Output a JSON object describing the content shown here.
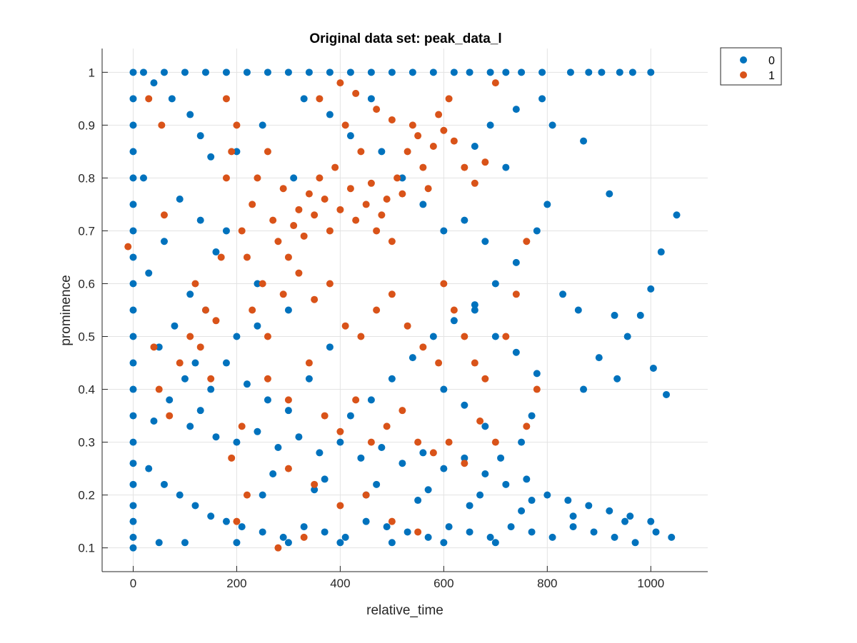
{
  "chart_data": {
    "type": "scatter",
    "title": "Original data set: peak_data_l",
    "xlabel": "relative_time",
    "ylabel": "prominence",
    "xlim": [
      -60,
      1110
    ],
    "ylim": [
      0.055,
      1.045
    ],
    "xticks": [
      0,
      200,
      400,
      600,
      800,
      1000
    ],
    "yticks": [
      0.1,
      0.2,
      0.3,
      0.4,
      0.5,
      0.6,
      0.7,
      0.8,
      0.9,
      1
    ],
    "grid": true,
    "legend_position": "top-right, outside",
    "series": [
      {
        "name": "0",
        "color": "#0072BD",
        "points": [
          [
            0,
            0.1
          ],
          [
            0,
            0.12
          ],
          [
            0,
            0.15
          ],
          [
            0,
            0.18
          ],
          [
            0,
            0.22
          ],
          [
            0,
            0.26
          ],
          [
            0,
            0.3
          ],
          [
            0,
            0.35
          ],
          [
            0,
            0.4
          ],
          [
            0,
            0.45
          ],
          [
            0,
            0.5
          ],
          [
            0,
            0.55
          ],
          [
            0,
            0.6
          ],
          [
            0,
            0.65
          ],
          [
            0,
            0.7
          ],
          [
            0,
            0.75
          ],
          [
            0,
            0.8
          ],
          [
            0,
            0.85
          ],
          [
            0,
            0.9
          ],
          [
            0,
            0.95
          ],
          [
            0,
            1.0
          ],
          [
            20,
            1.0
          ],
          [
            60,
            1.0
          ],
          [
            100,
            1.0
          ],
          [
            140,
            1.0
          ],
          [
            180,
            1.0
          ],
          [
            220,
            1.0
          ],
          [
            260,
            1.0
          ],
          [
            300,
            1.0
          ],
          [
            340,
            1.0
          ],
          [
            380,
            1.0
          ],
          [
            420,
            1.0
          ],
          [
            460,
            1.0
          ],
          [
            500,
            1.0
          ],
          [
            540,
            1.0
          ],
          [
            580,
            1.0
          ],
          [
            620,
            1.0
          ],
          [
            650,
            1.0
          ],
          [
            690,
            1.0
          ],
          [
            720,
            1.0
          ],
          [
            750,
            1.0
          ],
          [
            790,
            1.0
          ],
          [
            845,
            1.0
          ],
          [
            880,
            1.0
          ],
          [
            905,
            1.0
          ],
          [
            940,
            1.0
          ],
          [
            965,
            1.0
          ],
          [
            1000,
            1.0
          ],
          [
            40,
            0.98
          ],
          [
            75,
            0.95
          ],
          [
            110,
            0.92
          ],
          [
            130,
            0.88
          ],
          [
            150,
            0.84
          ],
          [
            20,
            0.8
          ],
          [
            90,
            0.76
          ],
          [
            130,
            0.72
          ],
          [
            60,
            0.68
          ],
          [
            160,
            0.66
          ],
          [
            30,
            0.62
          ],
          [
            110,
            0.58
          ],
          [
            140,
            0.55
          ],
          [
            80,
            0.52
          ],
          [
            50,
            0.48
          ],
          [
            120,
            0.45
          ],
          [
            100,
            0.42
          ],
          [
            150,
            0.4
          ],
          [
            70,
            0.38
          ],
          [
            130,
            0.36
          ],
          [
            40,
            0.34
          ],
          [
            110,
            0.33
          ],
          [
            160,
            0.31
          ],
          [
            200,
            0.3
          ],
          [
            240,
            0.32
          ],
          [
            280,
            0.29
          ],
          [
            320,
            0.31
          ],
          [
            360,
            0.28
          ],
          [
            400,
            0.3
          ],
          [
            440,
            0.27
          ],
          [
            480,
            0.29
          ],
          [
            520,
            0.26
          ],
          [
            560,
            0.28
          ],
          [
            600,
            0.25
          ],
          [
            640,
            0.27
          ],
          [
            680,
            0.24
          ],
          [
            720,
            0.22
          ],
          [
            760,
            0.23
          ],
          [
            800,
            0.2
          ],
          [
            840,
            0.19
          ],
          [
            880,
            0.18
          ],
          [
            920,
            0.17
          ],
          [
            960,
            0.16
          ],
          [
            1000,
            0.15
          ],
          [
            1040,
            0.12
          ],
          [
            30,
            0.25
          ],
          [
            60,
            0.22
          ],
          [
            90,
            0.2
          ],
          [
            120,
            0.18
          ],
          [
            150,
            0.16
          ],
          [
            180,
            0.15
          ],
          [
            210,
            0.14
          ],
          [
            250,
            0.13
          ],
          [
            290,
            0.12
          ],
          [
            330,
            0.14
          ],
          [
            370,
            0.13
          ],
          [
            410,
            0.12
          ],
          [
            450,
            0.15
          ],
          [
            490,
            0.14
          ],
          [
            530,
            0.13
          ],
          [
            570,
            0.12
          ],
          [
            610,
            0.14
          ],
          [
            650,
            0.13
          ],
          [
            690,
            0.12
          ],
          [
            730,
            0.14
          ],
          [
            770,
            0.13
          ],
          [
            810,
            0.12
          ],
          [
            850,
            0.14
          ],
          [
            890,
            0.13
          ],
          [
            930,
            0.12
          ],
          [
            970,
            0.11
          ],
          [
            1010,
            0.13
          ],
          [
            50,
            0.11
          ],
          [
            100,
            0.11
          ],
          [
            200,
            0.11
          ],
          [
            300,
            0.11
          ],
          [
            400,
            0.11
          ],
          [
            500,
            0.11
          ],
          [
            600,
            0.11
          ],
          [
            700,
            0.11
          ],
          [
            250,
            0.2
          ],
          [
            350,
            0.21
          ],
          [
            450,
            0.2
          ],
          [
            550,
            0.19
          ],
          [
            650,
            0.18
          ],
          [
            750,
            0.17
          ],
          [
            850,
            0.16
          ],
          [
            950,
            0.15
          ],
          [
            270,
            0.24
          ],
          [
            370,
            0.23
          ],
          [
            470,
            0.22
          ],
          [
            570,
            0.21
          ],
          [
            670,
            0.2
          ],
          [
            770,
            0.19
          ],
          [
            420,
            0.35
          ],
          [
            460,
            0.38
          ],
          [
            500,
            0.42
          ],
          [
            540,
            0.46
          ],
          [
            580,
            0.5
          ],
          [
            620,
            0.53
          ],
          [
            660,
            0.56
          ],
          [
            700,
            0.6
          ],
          [
            740,
            0.64
          ],
          [
            780,
            0.7
          ],
          [
            800,
            0.75
          ],
          [
            810,
            0.9
          ],
          [
            870,
            0.87
          ],
          [
            920,
            0.77
          ],
          [
            1000,
            0.59
          ],
          [
            1020,
            0.66
          ],
          [
            1050,
            0.73
          ],
          [
            930,
            0.54
          ],
          [
            980,
            0.54
          ],
          [
            860,
            0.55
          ],
          [
            830,
            0.58
          ],
          [
            955,
            0.5
          ],
          [
            900,
            0.46
          ],
          [
            1005,
            0.44
          ],
          [
            1030,
            0.39
          ],
          [
            935,
            0.42
          ],
          [
            870,
            0.4
          ],
          [
            780,
            0.43
          ],
          [
            740,
            0.47
          ],
          [
            700,
            0.5
          ],
          [
            660,
            0.55
          ],
          [
            240,
            0.52
          ],
          [
            200,
            0.5
          ],
          [
            180,
            0.45
          ],
          [
            220,
            0.41
          ],
          [
            260,
            0.38
          ],
          [
            300,
            0.36
          ],
          [
            340,
            0.42
          ],
          [
            380,
            0.48
          ],
          [
            300,
            0.55
          ],
          [
            240,
            0.6
          ],
          [
            180,
            0.7
          ],
          [
            200,
            0.85
          ],
          [
            250,
            0.9
          ],
          [
            310,
            0.8
          ],
          [
            330,
            0.95
          ],
          [
            380,
            0.92
          ],
          [
            420,
            0.88
          ],
          [
            460,
            0.95
          ],
          [
            480,
            0.85
          ],
          [
            520,
            0.8
          ],
          [
            560,
            0.75
          ],
          [
            600,
            0.7
          ],
          [
            640,
            0.72
          ],
          [
            680,
            0.68
          ],
          [
            720,
            0.82
          ],
          [
            660,
            0.86
          ],
          [
            690,
            0.9
          ],
          [
            740,
            0.93
          ],
          [
            790,
            0.95
          ],
          [
            770,
            0.35
          ],
          [
            750,
            0.3
          ],
          [
            710,
            0.27
          ],
          [
            680,
            0.33
          ],
          [
            640,
            0.37
          ],
          [
            600,
            0.4
          ]
        ]
      },
      {
        "name": "1",
        "color": "#D95319",
        "points": [
          [
            -10,
            0.67
          ],
          [
            30,
            0.95
          ],
          [
            55,
            0.9
          ],
          [
            60,
            0.73
          ],
          [
            120,
            0.6
          ],
          [
            140,
            0.55
          ],
          [
            180,
            0.95
          ],
          [
            200,
            0.9
          ],
          [
            210,
            0.7
          ],
          [
            220,
            0.65
          ],
          [
            230,
            0.75
          ],
          [
            240,
            0.8
          ],
          [
            250,
            0.6
          ],
          [
            260,
            0.85
          ],
          [
            270,
            0.72
          ],
          [
            280,
            0.68
          ],
          [
            290,
            0.78
          ],
          [
            300,
            0.65
          ],
          [
            310,
            0.71
          ],
          [
            320,
            0.74
          ],
          [
            330,
            0.69
          ],
          [
            340,
            0.77
          ],
          [
            350,
            0.73
          ],
          [
            360,
            0.8
          ],
          [
            370,
            0.76
          ],
          [
            380,
            0.7
          ],
          [
            390,
            0.82
          ],
          [
            400,
            0.74
          ],
          [
            410,
            0.9
          ],
          [
            420,
            0.78
          ],
          [
            430,
            0.72
          ],
          [
            440,
            0.85
          ],
          [
            450,
            0.75
          ],
          [
            460,
            0.79
          ],
          [
            470,
            0.7
          ],
          [
            480,
            0.73
          ],
          [
            490,
            0.76
          ],
          [
            500,
            0.68
          ],
          [
            510,
            0.8
          ],
          [
            520,
            0.77
          ],
          [
            530,
            0.85
          ],
          [
            540,
            0.9
          ],
          [
            550,
            0.88
          ],
          [
            560,
            0.82
          ],
          [
            570,
            0.78
          ],
          [
            580,
            0.86
          ],
          [
            590,
            0.92
          ],
          [
            600,
            0.89
          ],
          [
            610,
            0.95
          ],
          [
            620,
            0.87
          ],
          [
            640,
            0.82
          ],
          [
            660,
            0.79
          ],
          [
            680,
            0.83
          ],
          [
            700,
            0.98
          ],
          [
            760,
            0.68
          ],
          [
            780,
            0.4
          ],
          [
            230,
            0.55
          ],
          [
            260,
            0.5
          ],
          [
            290,
            0.58
          ],
          [
            320,
            0.62
          ],
          [
            350,
            0.57
          ],
          [
            380,
            0.6
          ],
          [
            410,
            0.52
          ],
          [
            440,
            0.5
          ],
          [
            470,
            0.55
          ],
          [
            500,
            0.58
          ],
          [
            530,
            0.52
          ],
          [
            560,
            0.48
          ],
          [
            590,
            0.45
          ],
          [
            260,
            0.42
          ],
          [
            300,
            0.38
          ],
          [
            340,
            0.45
          ],
          [
            370,
            0.35
          ],
          [
            400,
            0.32
          ],
          [
            430,
            0.38
          ],
          [
            460,
            0.3
          ],
          [
            490,
            0.33
          ],
          [
            520,
            0.36
          ],
          [
            550,
            0.3
          ],
          [
            580,
            0.28
          ],
          [
            610,
            0.3
          ],
          [
            640,
            0.26
          ],
          [
            670,
            0.34
          ],
          [
            700,
            0.3
          ],
          [
            760,
            0.33
          ],
          [
            300,
            0.25
          ],
          [
            350,
            0.22
          ],
          [
            400,
            0.18
          ],
          [
            450,
            0.2
          ],
          [
            500,
            0.15
          ],
          [
            550,
            0.13
          ],
          [
            280,
            0.1
          ],
          [
            330,
            0.12
          ],
          [
            200,
            0.15
          ],
          [
            220,
            0.2
          ],
          [
            190,
            0.27
          ],
          [
            210,
            0.33
          ],
          [
            150,
            0.42
          ],
          [
            160,
            0.53
          ],
          [
            170,
            0.65
          ],
          [
            180,
            0.8
          ],
          [
            190,
            0.85
          ],
          [
            360,
            0.95
          ],
          [
            400,
            0.98
          ],
          [
            430,
            0.96
          ],
          [
            470,
            0.93
          ],
          [
            500,
            0.91
          ],
          [
            600,
            0.6
          ],
          [
            620,
            0.55
          ],
          [
            640,
            0.5
          ],
          [
            660,
            0.45
          ],
          [
            680,
            0.42
          ],
          [
            720,
            0.5
          ],
          [
            740,
            0.58
          ],
          [
            50,
            0.4
          ],
          [
            40,
            0.48
          ],
          [
            70,
            0.35
          ],
          [
            90,
            0.45
          ],
          [
            110,
            0.5
          ],
          [
            130,
            0.48
          ]
        ]
      }
    ]
  }
}
